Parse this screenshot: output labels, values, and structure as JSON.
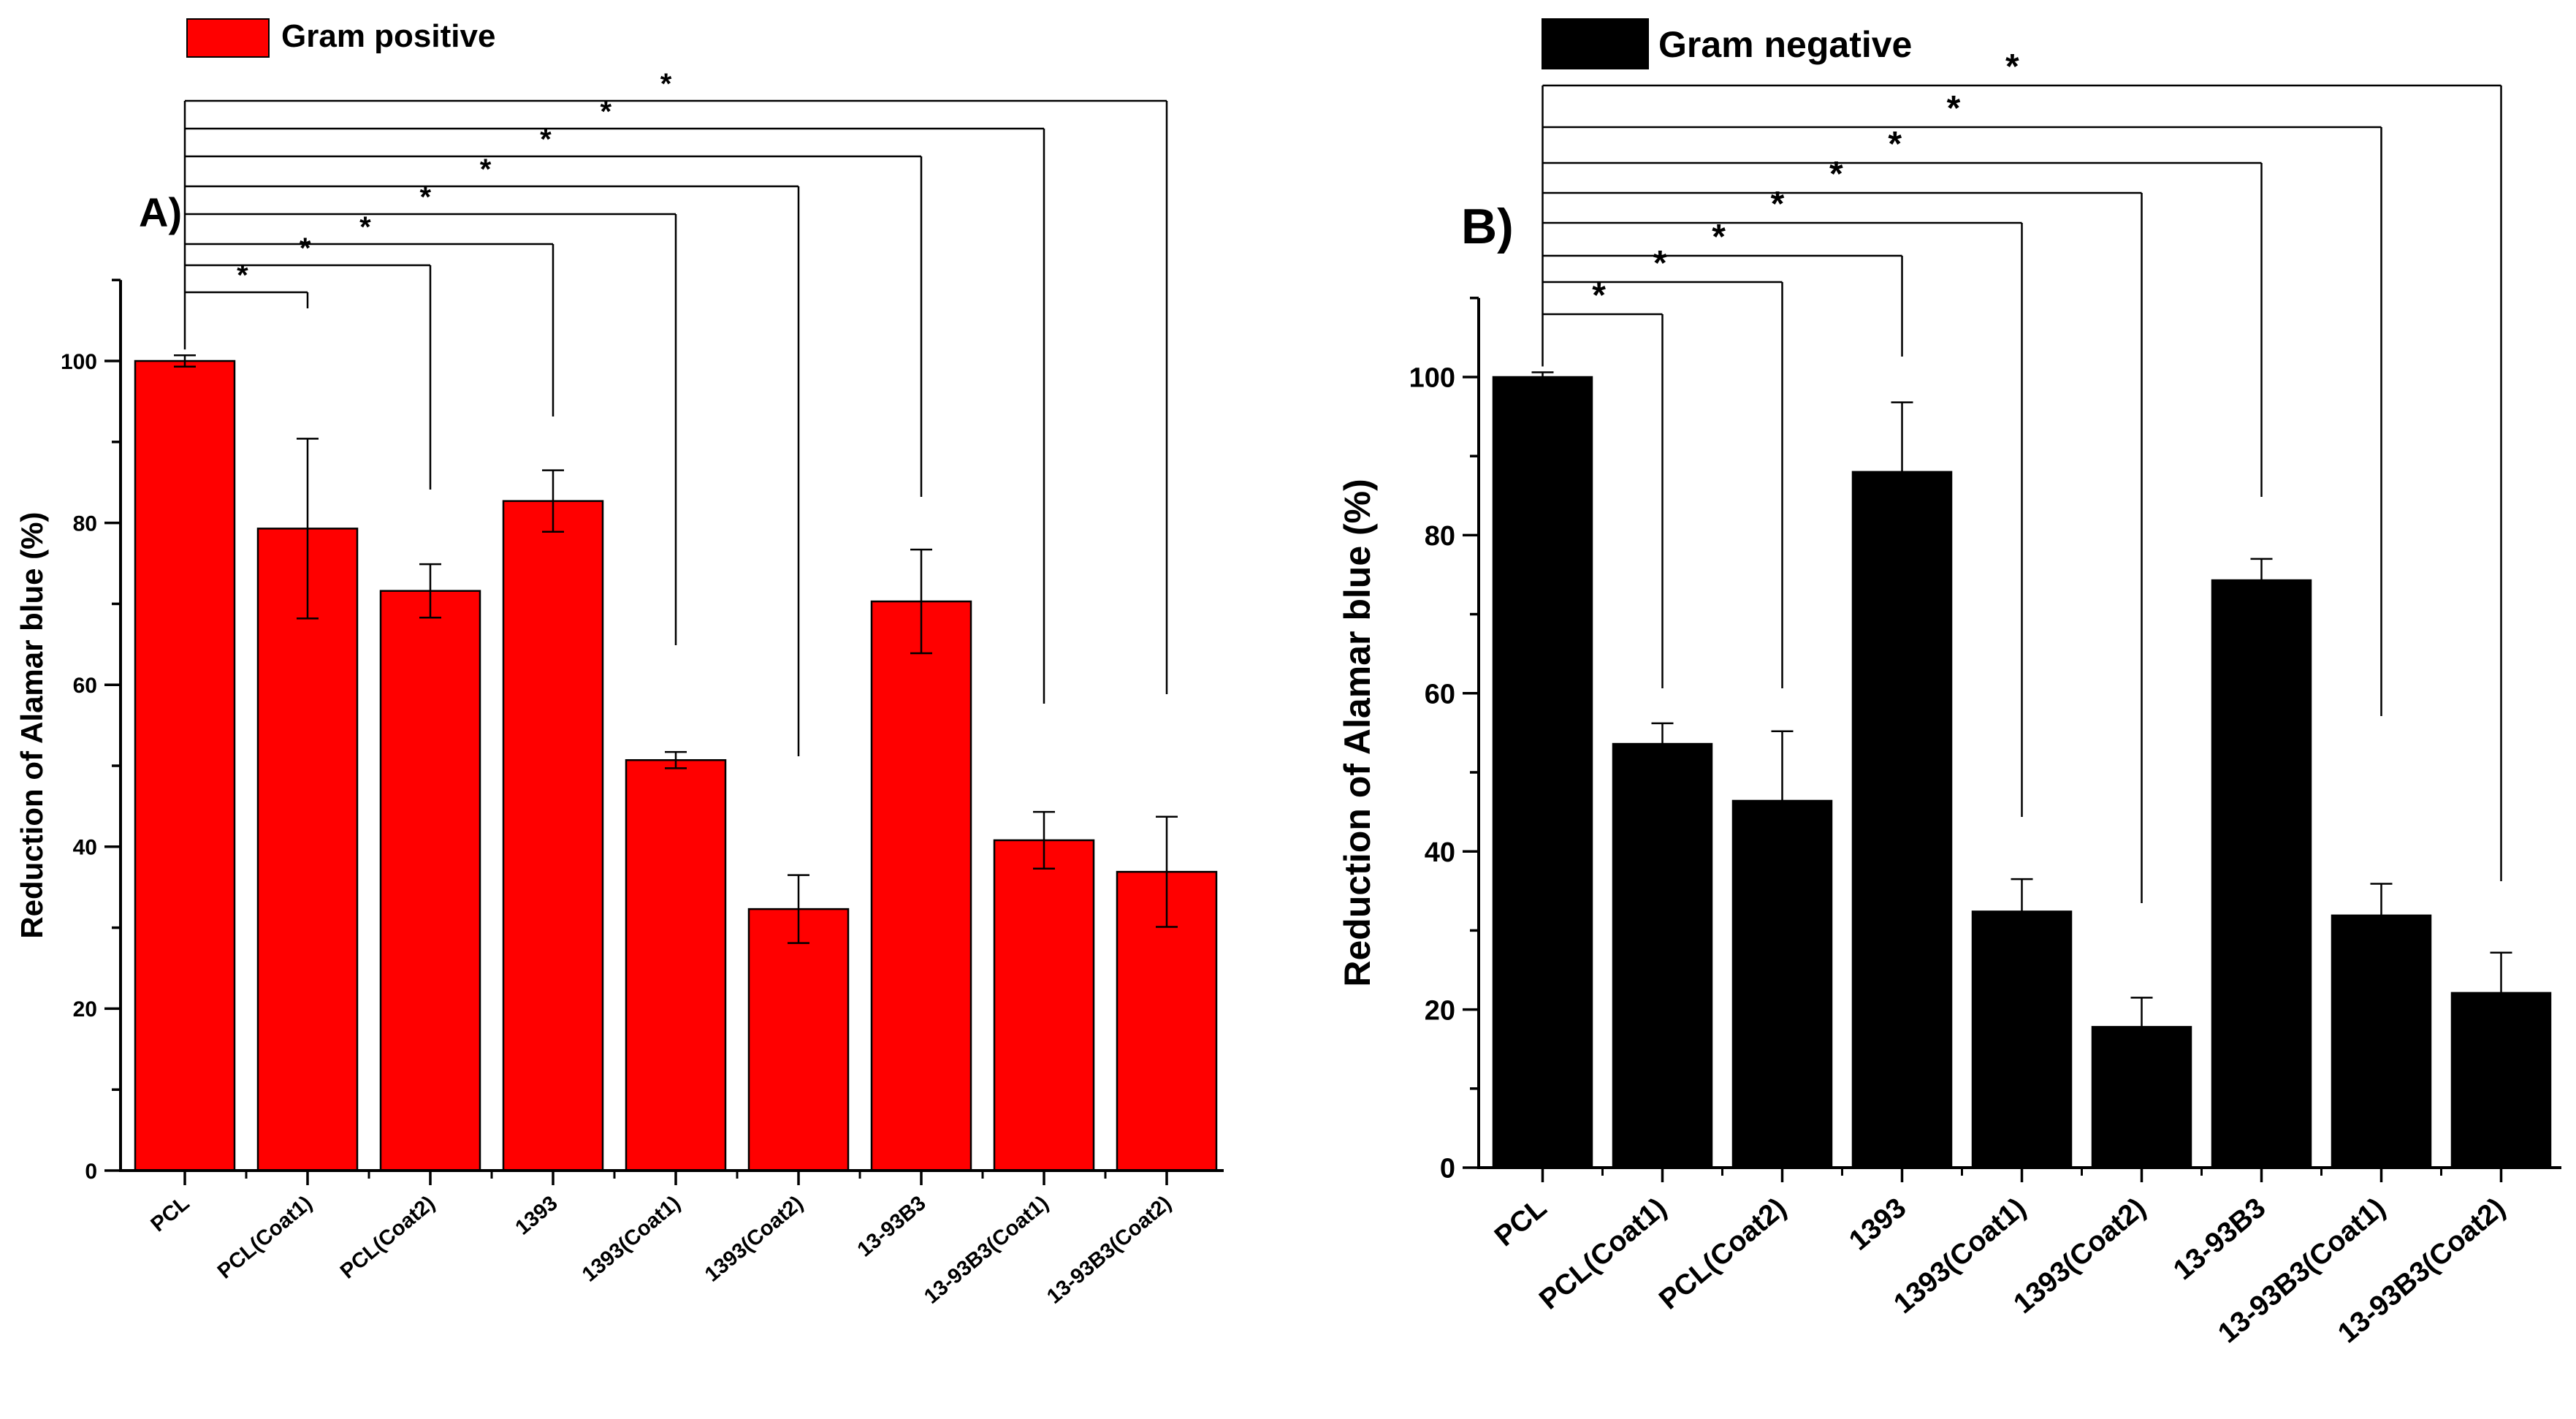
{
  "chart_data": [
    {
      "type": "bar",
      "panel_label": "A)",
      "legend": "Gram positive",
      "legend_position": "top-left",
      "bar_color": "#ff0000",
      "ylabel": "Reduction of Alamar blue (%)",
      "xlabel": "",
      "ylim": [
        0,
        110
      ],
      "yticks": [
        0,
        20,
        40,
        60,
        80,
        100
      ],
      "categories": [
        "PCL",
        "PCL(Coat1)",
        "PCL(Coat2)",
        "1393",
        "1393(Coat1)",
        "1393(Coat2)",
        "13-93B3",
        "13-93B3(Coat1)",
        "13-93B3(Coat2)"
      ],
      "values": [
        100,
        79.3,
        71.6,
        82.7,
        50.7,
        32.3,
        70.3,
        40.8,
        36.9
      ],
      "errors": [
        0.7,
        11.1,
        3.3,
        3.8,
        1.0,
        4.2,
        6.4,
        3.5,
        6.8
      ],
      "significance": {
        "reference": "PCL",
        "marker": "*",
        "pairs": [
          "PCL(Coat1)",
          "PCL(Coat2)",
          "1393",
          "1393(Coat1)",
          "1393(Coat2)",
          "13-93B3",
          "13-93B3(Coat1)",
          "13-93B3(Coat2)"
        ]
      }
    },
    {
      "type": "bar",
      "panel_label": "B)",
      "legend": "Gram negative",
      "legend_position": "top-left",
      "bar_color": "#000000",
      "ylabel": "Reduction of Alamar blue (%)",
      "xlabel": "",
      "ylim": [
        0,
        110
      ],
      "yticks": [
        0,
        20,
        40,
        60,
        80,
        100
      ],
      "categories": [
        "PCL",
        "PCL(Coat1)",
        "PCL(Coat2)",
        "1393",
        "1393(Coat1)",
        "1393(Coat2)",
        "13-93B3",
        "13-93B3(Coat1)",
        "13-93B3(Coat2)"
      ],
      "values": [
        100,
        53.6,
        46.4,
        88.0,
        32.4,
        17.8,
        74.3,
        31.9,
        22.1
      ],
      "errors": [
        0.6,
        2.6,
        8.8,
        8.8,
        4.1,
        3.7,
        2.7,
        4.0,
        5.1
      ],
      "significance": {
        "reference": "PCL",
        "marker": "*",
        "pairs": [
          "PCL(Coat1)",
          "PCL(Coat2)",
          "1393",
          "1393(Coat1)",
          "1393(Coat2)",
          "13-93B3",
          "13-93B3(Coat1)",
          "13-93B3(Coat2)"
        ]
      }
    }
  ]
}
